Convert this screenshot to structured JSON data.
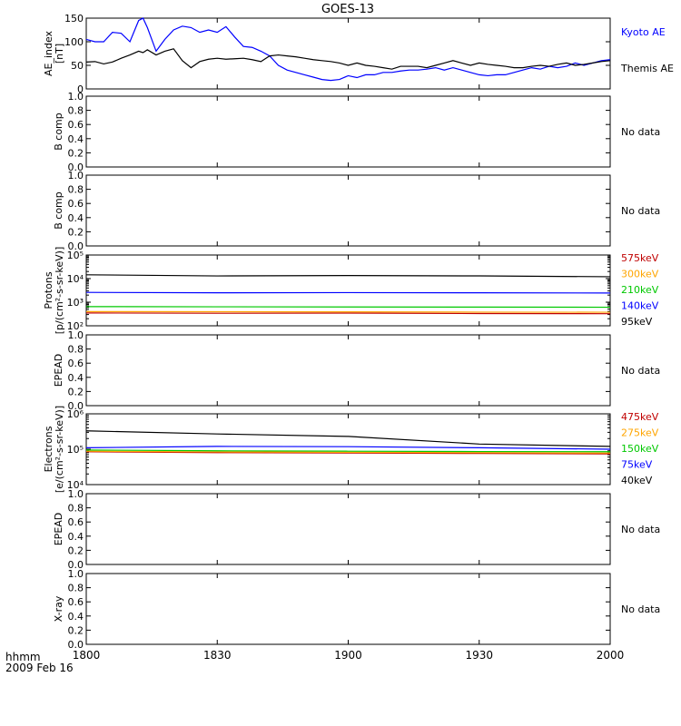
{
  "chart_data": {
    "type": "line",
    "title": "GOES-13",
    "x_ticks": [
      "1800",
      "1830",
      "1900",
      "1930",
      "2000"
    ],
    "x_range": [
      "18:00",
      "20:00"
    ],
    "time_label": "hhmm",
    "date_label": "2009 Feb 16",
    "panels": [
      {
        "ylabel": [
          "AE_index",
          "[nT]"
        ],
        "yticks": [
          "0",
          "50",
          "100",
          "150"
        ],
        "ylim": [
          0,
          150
        ],
        "scale": "linear",
        "x_times": [
          "18:00",
          "18:02",
          "18:04",
          "18:06",
          "18:08",
          "18:10",
          "18:12",
          "18:13",
          "18:14",
          "18:16",
          "18:18",
          "18:20",
          "18:22",
          "18:24",
          "18:26",
          "18:28",
          "18:30",
          "18:32",
          "18:34",
          "18:36",
          "18:38",
          "18:40",
          "18:42",
          "18:44",
          "18:46",
          "18:48",
          "18:50",
          "18:52",
          "18:54",
          "18:56",
          "18:58",
          "19:00",
          "19:02",
          "19:04",
          "19:06",
          "19:08",
          "19:10",
          "19:12",
          "19:14",
          "19:16",
          "19:18",
          "19:20",
          "19:22",
          "19:24",
          "19:26",
          "19:28",
          "19:30",
          "19:32",
          "19:34",
          "19:36",
          "19:38",
          "19:40",
          "19:42",
          "19:44",
          "19:46",
          "19:48",
          "19:50",
          "19:52",
          "19:54",
          "19:56",
          "19:58",
          "20:00"
        ],
        "series": [
          {
            "name": "Kyoto AE",
            "color": "#0000ff",
            "values": [
              105,
              100,
              100,
              120,
              118,
              100,
              145,
              150,
              130,
              80,
              105,
              125,
              133,
              130,
              120,
              125,
              120,
              132,
              110,
              90,
              88,
              80,
              70,
              50,
              40,
              35,
              30,
              25,
              20,
              18,
              20,
              28,
              24,
              30,
              30,
              35,
              35,
              38,
              40,
              40,
              42,
              45,
              40,
              45,
              40,
              35,
              30,
              28,
              30,
              30,
              35,
              40,
              45,
              42,
              48,
              45,
              48,
              55,
              50,
              55,
              60,
              62
            ]
          },
          {
            "name": "Themis AE",
            "color": "#000000",
            "values": [
              57,
              58,
              53,
              57,
              65,
              72,
              80,
              77,
              83,
              72,
              80,
              85,
              60,
              45,
              58,
              63,
              65,
              63,
              64,
              65,
              62,
              58,
              70,
              72,
              70,
              68,
              65,
              62,
              60,
              58,
              55,
              50,
              55,
              50,
              48,
              45,
              42,
              48,
              48,
              48,
              45,
              50,
              55,
              60,
              55,
              50,
              55,
              52,
              50,
              48,
              45,
              45,
              48,
              50,
              48,
              52,
              55,
              50,
              52,
              55,
              58,
              60
            ]
          }
        ],
        "legend": [
          "Kyoto AE",
          "Themis AE"
        ]
      },
      {
        "ylabel": [
          "B comp"
        ],
        "yticks": [
          "0.0",
          "0.2",
          "0.4",
          "0.6",
          "0.8",
          "1.0"
        ],
        "ylim": [
          0,
          1
        ],
        "scale": "linear",
        "series": [],
        "note": "No data"
      },
      {
        "ylabel": [
          "B comp"
        ],
        "yticks": [
          "0.0",
          "0.2",
          "0.4",
          "0.6",
          "0.8",
          "1.0"
        ],
        "ylim": [
          0,
          1
        ],
        "scale": "linear",
        "series": [],
        "note": "No data"
      },
      {
        "ylabel": [
          "Protons",
          "[p/(cm²-s-sr-keV)]"
        ],
        "yticks": [
          "10²",
          "10³",
          "10⁴",
          "10⁵"
        ],
        "ylim": [
          100,
          100000
        ],
        "scale": "log",
        "x_times": [
          "18:00",
          "18:30",
          "19:00",
          "19:30",
          "20:00"
        ],
        "series": [
          {
            "name": "575keV",
            "color": "#c00000",
            "values": [
              350,
              340,
              345,
              330,
              325
            ]
          },
          {
            "name": "300keV",
            "color": "#ffa500",
            "values": [
              400,
              395,
              390,
              380,
              375
            ]
          },
          {
            "name": "210keV",
            "color": "#00c800",
            "values": [
              650,
              640,
              630,
              620,
              610
            ]
          },
          {
            "name": "140keV",
            "color": "#0000ff",
            "values": [
              2600,
              2500,
              2550,
              2500,
              2450
            ]
          },
          {
            "name": "95keV",
            "color": "#000000",
            "values": [
              14500,
              13000,
              13500,
              13000,
              12000
            ]
          }
        ],
        "legend": [
          "575keV",
          "300keV",
          "210keV",
          "140keV",
          "95keV"
        ]
      },
      {
        "ylabel": [
          "EPEAD"
        ],
        "yticks": [
          "0.0",
          "0.2",
          "0.4",
          "0.6",
          "0.8",
          "1.0"
        ],
        "ylim": [
          0,
          1
        ],
        "scale": "linear",
        "series": [],
        "note": "No data"
      },
      {
        "ylabel": [
          "Electrons",
          "[e/(cm²-s-sr-keV)]"
        ],
        "yticks": [
          "10⁴",
          "10⁵",
          "10⁶"
        ],
        "ylim": [
          10000,
          1000000
        ],
        "scale": "log",
        "x_times": [
          "18:00",
          "18:30",
          "19:00",
          "19:30",
          "20:00"
        ],
        "series": [
          {
            "name": "475keV",
            "color": "#c00000",
            "values": [
              85000,
              80000,
              78000,
              76000,
              74000
            ]
          },
          {
            "name": "275keV",
            "color": "#ffa500",
            "values": [
              88000,
              84000,
              82000,
              80000,
              78000
            ]
          },
          {
            "name": "150keV",
            "color": "#00c800",
            "values": [
              95000,
              90000,
              88000,
              86000,
              85000
            ]
          },
          {
            "name": "75keV",
            "color": "#0000ff",
            "values": [
              110000,
              120000,
              118000,
              110000,
              100000
            ]
          },
          {
            "name": "40keV",
            "color": "#000000",
            "values": [
              330000,
              270000,
              230000,
              140000,
              120000
            ]
          }
        ],
        "legend": [
          "475keV",
          "275keV",
          "150keV",
          "75keV",
          "40keV"
        ]
      },
      {
        "ylabel": [
          "EPEAD"
        ],
        "yticks": [
          "0.0",
          "0.2",
          "0.4",
          "0.6",
          "0.8",
          "1.0"
        ],
        "ylim": [
          0,
          1
        ],
        "scale": "linear",
        "series": [],
        "note": "No data"
      },
      {
        "ylabel": [
          "X-ray"
        ],
        "yticks": [
          "0.0",
          "0.2",
          "0.4",
          "0.6",
          "0.8",
          "1.0"
        ],
        "ylim": [
          0,
          1
        ],
        "scale": "linear",
        "series": [],
        "note": "No data"
      }
    ]
  }
}
